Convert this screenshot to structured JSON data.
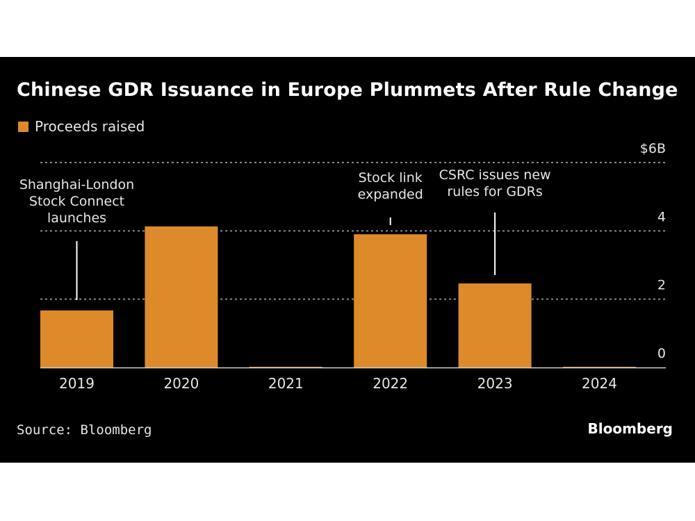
{
  "header": {
    "title": "Chinese GDR Issuance in Europe Plummets After Rule Change"
  },
  "footer": {
    "source": "Source: Bloomberg",
    "brand": "Bloomberg"
  },
  "colors": {
    "background": "#000000",
    "bar": "#dd8a2a",
    "text": "#e6e6e6",
    "gridline": "#8a8a8a",
    "baseline": "#cfcfcf"
  },
  "chart_data": {
    "type": "bar",
    "title": "Chinese GDR Issuance in Europe Plummets After Rule Change",
    "xlabel": "",
    "ylabel": "",
    "categories": [
      "2019",
      "2020",
      "2021",
      "2022",
      "2023",
      "2024"
    ],
    "series": [
      {
        "name": "Proceeds raised",
        "values": [
          1.67,
          4.13,
          0.02,
          3.9,
          2.46,
          0.02
        ]
      }
    ],
    "ylim": [
      0,
      6
    ],
    "yticks": [
      0,
      2,
      4,
      6
    ],
    "ytick_labels": [
      "0",
      "2",
      "4",
      "$6B"
    ],
    "grid": true,
    "y_axis_side": "right",
    "legend": {
      "position": "top-left",
      "entries": [
        "Proceeds raised"
      ]
    },
    "annotations": [
      {
        "category": "2019",
        "lines": [
          "Shanghai-London",
          "Stock Connect",
          "launches"
        ]
      },
      {
        "category": "2022",
        "lines": [
          "Stock link",
          "expanded"
        ]
      },
      {
        "category": "2023",
        "lines": [
          "CSRC issues new",
          "rules for GDRs"
        ]
      }
    ],
    "source": "Source: Bloomberg"
  }
}
